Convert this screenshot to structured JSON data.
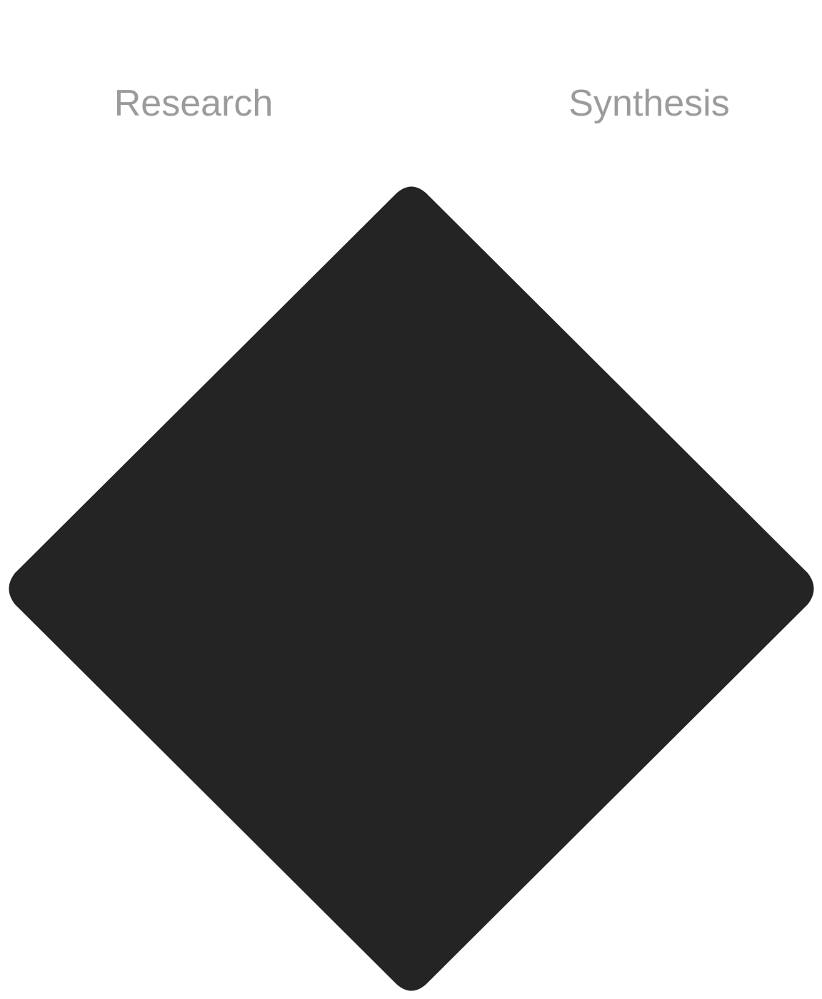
{
  "diagram": {
    "labels": {
      "left": "Research",
      "right": "Synthesis"
    },
    "shape": {
      "type": "diamond",
      "fill": "#242424"
    },
    "colors": {
      "background": "#ffffff",
      "label_text": "#9b9b9b"
    }
  }
}
